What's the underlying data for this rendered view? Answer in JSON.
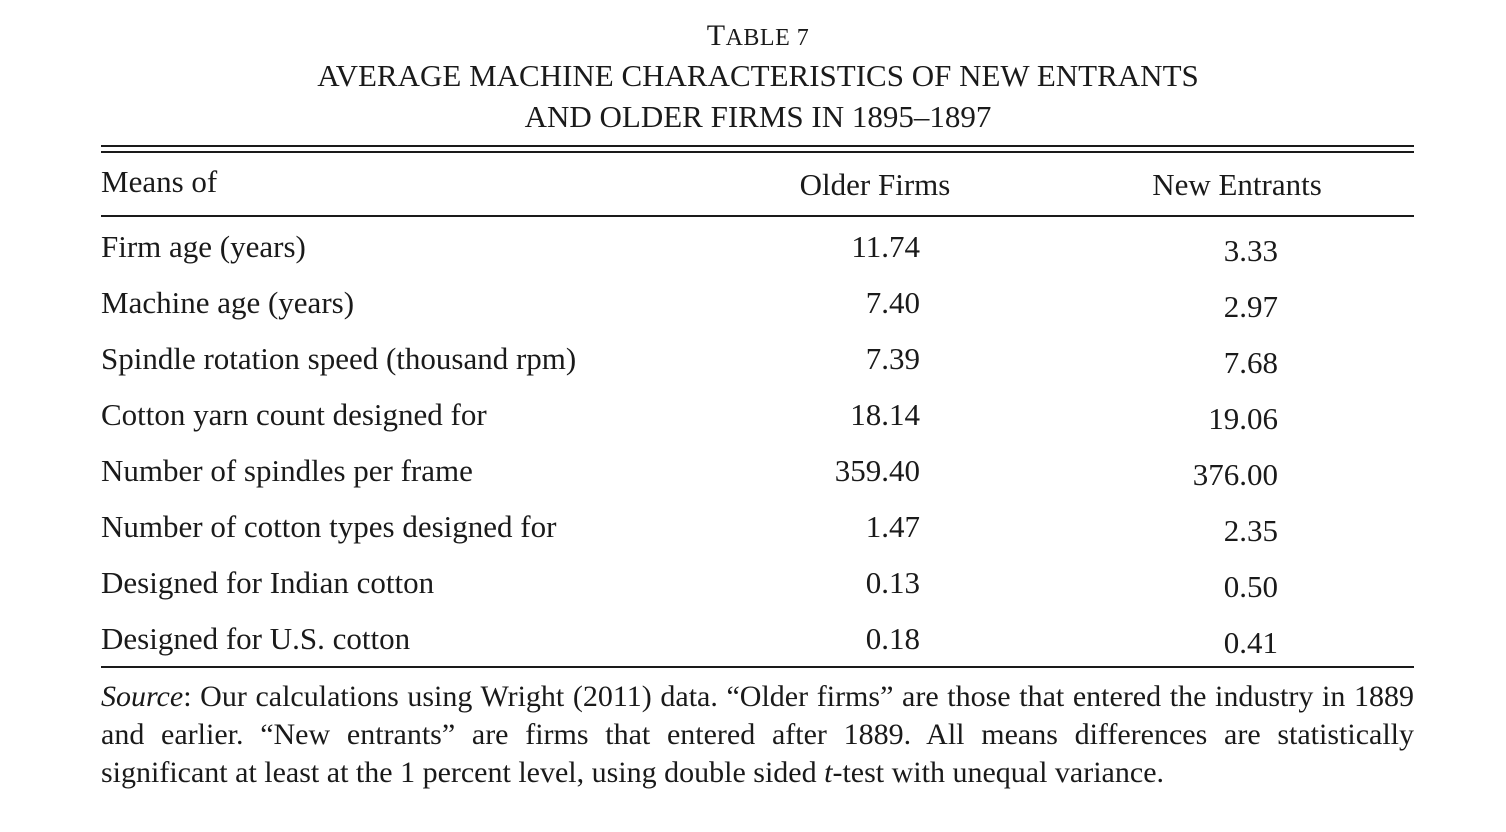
{
  "table": {
    "label_prefix": "T",
    "label_rest": "ABLE 7",
    "title_line1": "AVERAGE MACHINE CHARACTERISTICS OF NEW ENTRANTS",
    "title_line2": "AND OLDER FIRMS IN 1895–1897",
    "headers": {
      "stub": "Means of",
      "older": "Older Firms",
      "new": "New Entrants"
    },
    "rows": [
      {
        "label": "Firm age (years)",
        "older": "11.74",
        "new": "3.33"
      },
      {
        "label": "Machine age (years)",
        "older": "7.40",
        "new": "2.97"
      },
      {
        "label": "Spindle rotation speed (thousand rpm)",
        "older": "7.39",
        "new": "7.68"
      },
      {
        "label": "Cotton yarn count designed for",
        "older": "18.14",
        "new": "19.06"
      },
      {
        "label": "Number of spindles per frame",
        "older": "359.40",
        "new": "376.00"
      },
      {
        "label": "Number of cotton types designed for",
        "older": "1.47",
        "new": "2.35"
      },
      {
        "label": "Designed for Indian cotton",
        "older": "0.13",
        "new": "0.50"
      },
      {
        "label": "Designed for U.S. cotton",
        "older": "0.18",
        "new": "0.41"
      }
    ],
    "note": {
      "source_label": "Source",
      "text_part1": ": Our calculations using Wright (2011) data. “Older firms” are those that entered the industry in 1889 and earlier. “New entrants” are firms that entered after 1889. All means differences are statistically significant at least at the 1 percent level, using double sided ",
      "t_letter": "t",
      "text_part2": "-test with unequal variance."
    }
  }
}
